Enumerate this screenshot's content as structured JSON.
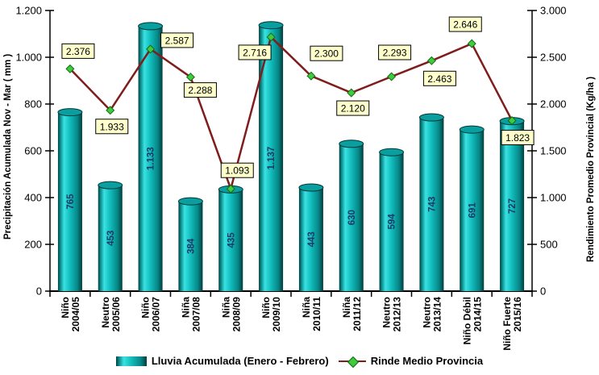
{
  "chart_data": {
    "type": "bar+line",
    "title": "",
    "grid": false,
    "legend_position": "bottom",
    "categories": [
      "Niño 2004/05",
      "Neutro 2005/06",
      "Niño 2006/07",
      "Niña 2007/08",
      "Niña 2008/09",
      "Niño 2009/10",
      "Niña 2010/11",
      "Niña 2011/12",
      "Neutro 2012/13",
      "Neutro 2013/14",
      "Niño Débil 2014/15",
      "Niño Fuerte 2015/16"
    ],
    "series": [
      {
        "name": "Lluvia Acumulada (Enero - Febrero)",
        "type": "bar",
        "axis": "left",
        "values": [
          765,
          453,
          1133,
          384,
          435,
          1137,
          443,
          630,
          594,
          743,
          691,
          727
        ],
        "labels": [
          "765",
          "453",
          "1.133",
          "384",
          "435",
          "1.137",
          "443",
          "630",
          "594",
          "743",
          "691",
          "727"
        ]
      },
      {
        "name": "Rinde Medio Provincia",
        "type": "line",
        "axis": "right",
        "values": [
          2376,
          1933,
          2587,
          2288,
          1093,
          2716,
          2300,
          2120,
          2293,
          2463,
          2646,
          1823
        ],
        "labels": [
          "2.376",
          "1.933",
          "2.587",
          "2.288",
          "1.093",
          "2.716",
          "2.300",
          "2.120",
          "2.293",
          "2.463",
          "2.646",
          "1.823"
        ],
        "label_offsets": [
          [
            10,
            -22
          ],
          [
            2,
            20
          ],
          [
            33,
            -11
          ],
          [
            12,
            16
          ],
          [
            8,
            -23
          ],
          [
            -20,
            19
          ],
          [
            19,
            -28
          ],
          [
            2,
            19
          ],
          [
            4,
            -30
          ],
          [
            10,
            22
          ],
          [
            -8,
            -24
          ],
          [
            7,
            21
          ]
        ]
      }
    ],
    "left_axis": {
      "title": "Precipitación Acumulada Nov - Mar ( mm )",
      "min": 0,
      "max": 1200,
      "step": 200,
      "tick_labels": [
        "1.200",
        "1.000",
        "800",
        "600",
        "400",
        "200",
        "0"
      ]
    },
    "right_axis": {
      "title": "Rendimiento Promedio Provincial (Kg/ha )",
      "min": 0,
      "max": 3000,
      "step": 500,
      "tick_labels": [
        "3.000",
        "2.500",
        "2.000",
        "1.500",
        "1.000",
        "500",
        "0"
      ]
    },
    "colors": {
      "bar_gradient": [
        "#013d3d",
        "#06807f",
        "#3ae2e2",
        "#11bcbc",
        "#078787",
        "#013d3d"
      ],
      "bar_gradient_offsets": [
        0,
        0.08,
        0.25,
        0.5,
        0.8,
        1
      ],
      "bar_cap": "#0a9e9e",
      "bar_cap_border": "#013434",
      "bar_value_color": "#1f3864",
      "line": "#7f1d1d",
      "marker_fill": "#3ecc3e",
      "marker_border": "#156b15",
      "data_label_bg": "#ffffcc",
      "data_label_border": "#000000",
      "axis_color": "#000000"
    }
  }
}
